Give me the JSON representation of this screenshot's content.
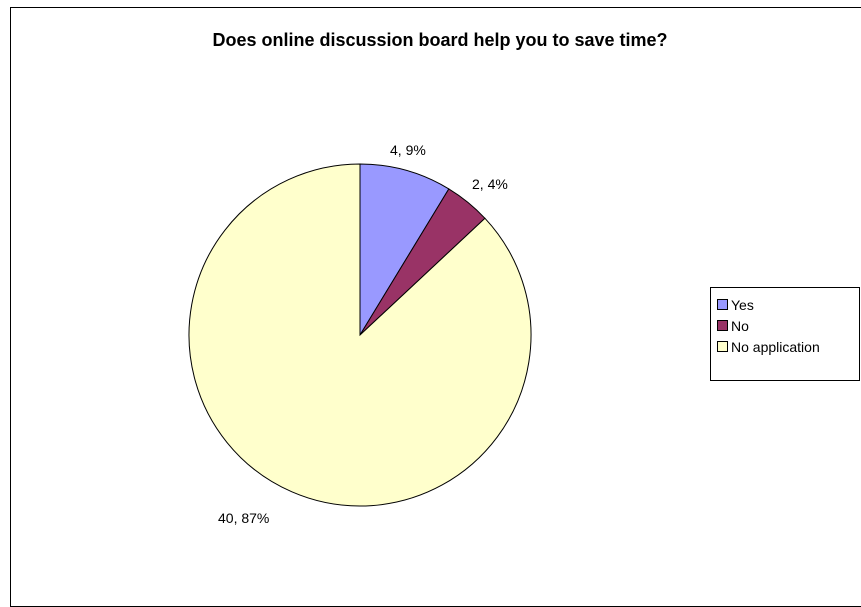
{
  "chart_data": {
    "type": "pie",
    "title": "Does online discussion board help you to save time?",
    "categories": [
      "Yes",
      "No",
      "No application"
    ],
    "values": [
      4,
      2,
      40
    ],
    "percentages": [
      9,
      4,
      87
    ],
    "data_labels": [
      "4, 9%",
      "2, 4%",
      "40, 87%"
    ],
    "colors": [
      "#9999ff",
      "#993366",
      "#ffffcc"
    ],
    "legend_placement": "right"
  }
}
